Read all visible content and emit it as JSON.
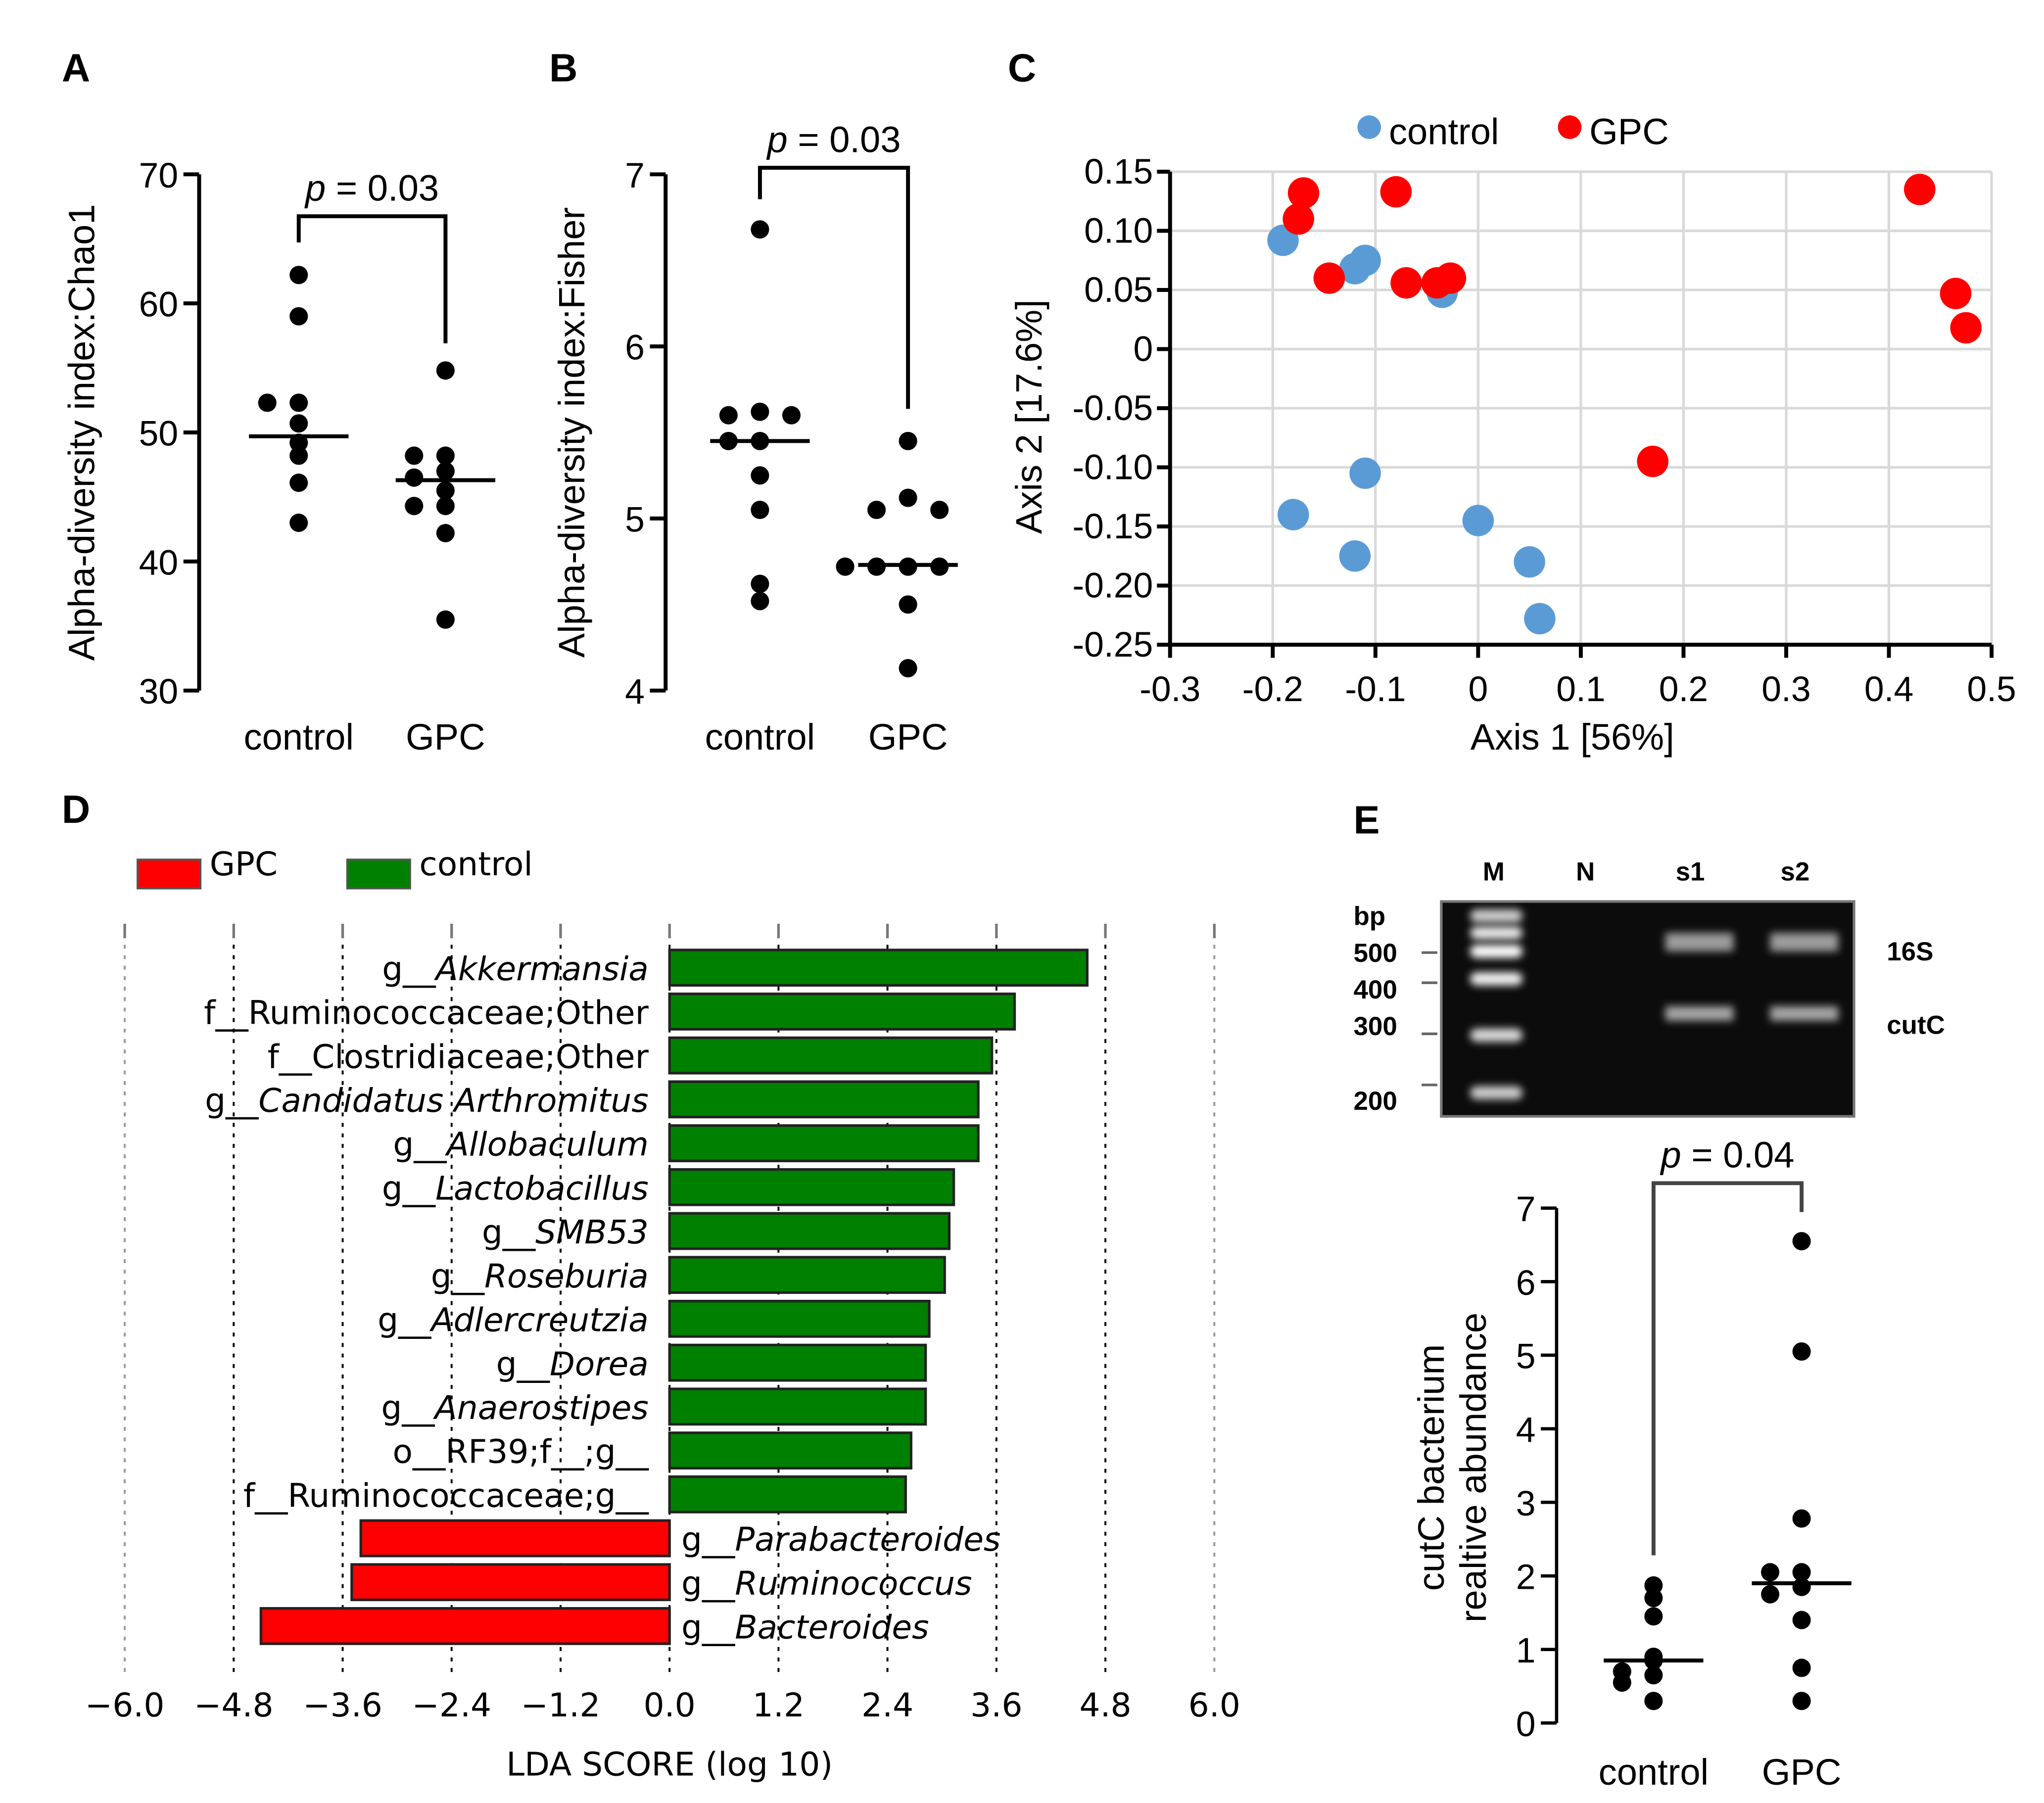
{
  "chart_data": [
    {
      "panel": "A",
      "type": "scatter",
      "title": "",
      "ylabel": "Alpha-diversity index:Chao1",
      "ylim": [
        30,
        70
      ],
      "yticks": [
        "30",
        "40",
        "50",
        "60",
        "70"
      ],
      "categories": [
        "control",
        "GPC"
      ],
      "series": [
        {
          "name": "control",
          "values": [
            62.2,
            59.0,
            52.3,
            52.3,
            50.7,
            49.2,
            48.2,
            46.1,
            43.0
          ],
          "median": 49.7
        },
        {
          "name": "GPC",
          "values": [
            54.8,
            48.2,
            48.2,
            47.0,
            46.5,
            45.5,
            44.3,
            44.3,
            42.2,
            35.5
          ],
          "median": 46.3
        }
      ],
      "annotation": {
        "p": "p",
        "rest": " = 0.03"
      }
    },
    {
      "panel": "B",
      "type": "scatter",
      "title": "",
      "ylabel": "Alpha-diversity index:Fisher",
      "ylim": [
        4,
        7
      ],
      "yticks": [
        "4",
        "5",
        "6",
        "7"
      ],
      "categories": [
        "control",
        "GPC"
      ],
      "series": [
        {
          "name": "control",
          "values": [
            6.68,
            5.62,
            5.6,
            5.6,
            5.45,
            5.45,
            5.25,
            5.05,
            4.62,
            4.52
          ],
          "median": 5.45
        },
        {
          "name": "GPC",
          "values": [
            5.45,
            5.12,
            5.05,
            5.05,
            4.72,
            4.72,
            4.72,
            4.72,
            4.5,
            4.13
          ],
          "median": 4.73
        }
      ],
      "annotation": {
        "p": "p",
        "rest": " = 0.03"
      }
    },
    {
      "panel": "C",
      "type": "scatter",
      "xlabel": "Axis 1 [56%]",
      "ylabel": "Axis 2 [17.6%]",
      "xlim": [
        -0.3,
        0.5
      ],
      "ylim": [
        -0.25,
        0.15
      ],
      "grid": true,
      "legend": "top",
      "xticks": [
        "-0.3",
        "-0.2",
        "-0.1",
        "0",
        "0.1",
        "0.2",
        "0.3",
        "0.4",
        "0.5"
      ],
      "yticks": [
        "0.15",
        "0.10",
        "0.05",
        "0",
        "-0.05",
        "-0.10",
        "-0.15",
        "-0.20",
        "-0.25"
      ],
      "series": [
        {
          "name": "control",
          "color": "#5b9bd5",
          "points": [
            [
              -0.19,
              0.092
            ],
            [
              -0.12,
              0.068
            ],
            [
              -0.11,
              0.075
            ],
            [
              -0.035,
              0.048
            ],
            [
              -0.11,
              -0.105
            ],
            [
              -0.18,
              -0.14
            ],
            [
              -0.12,
              -0.175
            ],
            [
              0,
              -0.145
            ],
            [
              0.05,
              -0.18
            ],
            [
              0.06,
              -0.228
            ]
          ]
        },
        {
          "name": "GPC",
          "color": "#ff0000",
          "points": [
            [
              -0.17,
              0.132
            ],
            [
              -0.175,
              0.11
            ],
            [
              -0.08,
              0.133
            ],
            [
              -0.145,
              0.06
            ],
            [
              -0.07,
              0.056
            ],
            [
              -0.04,
              0.056
            ],
            [
              -0.027,
              0.06
            ],
            [
              0.43,
              0.135
            ],
            [
              0.465,
              0.047
            ],
            [
              0.475,
              0.018
            ],
            [
              0.17,
              -0.095
            ]
          ]
        }
      ]
    },
    {
      "panel": "D",
      "type": "bar",
      "orientation": "horizontal",
      "xlabel": "LDA SCORE (log 10)",
      "xlim": [
        -6,
        6
      ],
      "xticks": [
        "−6.0",
        "−4.8",
        "−3.6",
        "−2.4",
        "−1.2",
        "0.0",
        "1.2",
        "2.4",
        "3.6",
        "4.8",
        "6.0"
      ],
      "legend": [
        {
          "name": "GPC",
          "color": "#ff0000"
        },
        {
          "name": "control",
          "color": "#008000"
        }
      ],
      "bars": [
        {
          "prefix": "g__",
          "name": "Akkermansia",
          "italic": true,
          "value": 4.6
        },
        {
          "prefix": "f__",
          "name": "Ruminococcaceae;Other",
          "italic": false,
          "value": 3.8
        },
        {
          "prefix": "f__",
          "name": "Clostridiaceae;Other",
          "italic": false,
          "value": 3.55
        },
        {
          "prefix": "g__",
          "name": "Candidatus Arthromitus",
          "italic": true,
          "value": 3.4
        },
        {
          "prefix": "g__",
          "name": "Allobaculum",
          "italic": true,
          "value": 3.4
        },
        {
          "prefix": "g__",
          "name": "Lactobacillus",
          "italic": true,
          "value": 3.13
        },
        {
          "prefix": "g__",
          "name": "SMB53",
          "italic": true,
          "value": 3.08
        },
        {
          "prefix": "g__",
          "name": "Roseburia",
          "italic": true,
          "value": 3.03
        },
        {
          "prefix": "g__",
          "name": "Adlercreutzia",
          "italic": true,
          "value": 2.86
        },
        {
          "prefix": "g__",
          "name": "Dorea",
          "italic": true,
          "value": 2.82
        },
        {
          "prefix": "g__",
          "name": "Anaerostipes",
          "italic": true,
          "value": 2.82
        },
        {
          "prefix": "o__",
          "name": "RF39;f__;g__",
          "italic": false,
          "value": 2.66
        },
        {
          "prefix": "f__",
          "name": "Ruminococcaceae;g__",
          "italic": false,
          "value": 2.6
        },
        {
          "prefix": "g__",
          "name": "Parabacteroides",
          "italic": true,
          "value": -3.4
        },
        {
          "prefix": "g__",
          "name": "Ruminococcus",
          "italic": true,
          "value": -3.5
        },
        {
          "prefix": "g__",
          "name": "Bacteroides",
          "italic": true,
          "value": -4.5
        }
      ]
    },
    {
      "panel": "E",
      "type": "scatter",
      "gel": {
        "lanes": [
          "M",
          "N",
          "s1",
          "s2"
        ],
        "unit": "bp",
        "size_markers": [
          "500",
          "400",
          "300",
          "200"
        ],
        "band_labels": [
          "16S",
          "cutC"
        ]
      },
      "ylabel": [
        "cutC bacterium",
        "realtive abundance"
      ],
      "ylim": [
        0,
        7
      ],
      "yticks": [
        "0",
        "1",
        "2",
        "3",
        "4",
        "5",
        "6",
        "7"
      ],
      "categories": [
        "control",
        "GPC"
      ],
      "series": [
        {
          "name": "control",
          "values": [
            1.87,
            1.7,
            1.45,
            0.9,
            0.85,
            0.7,
            0.65,
            0.55,
            0.3
          ],
          "median": 0.85
        },
        {
          "name": "GPC",
          "values": [
            6.55,
            5.05,
            2.78,
            2.05,
            2.05,
            1.85,
            1.75,
            1.4,
            0.75,
            0.3
          ],
          "median": 1.9
        }
      ],
      "annotation": {
        "p": "p",
        "rest": " = 0.04"
      }
    }
  ],
  "panel_letters": [
    "A",
    "B",
    "C",
    "D",
    "E"
  ]
}
